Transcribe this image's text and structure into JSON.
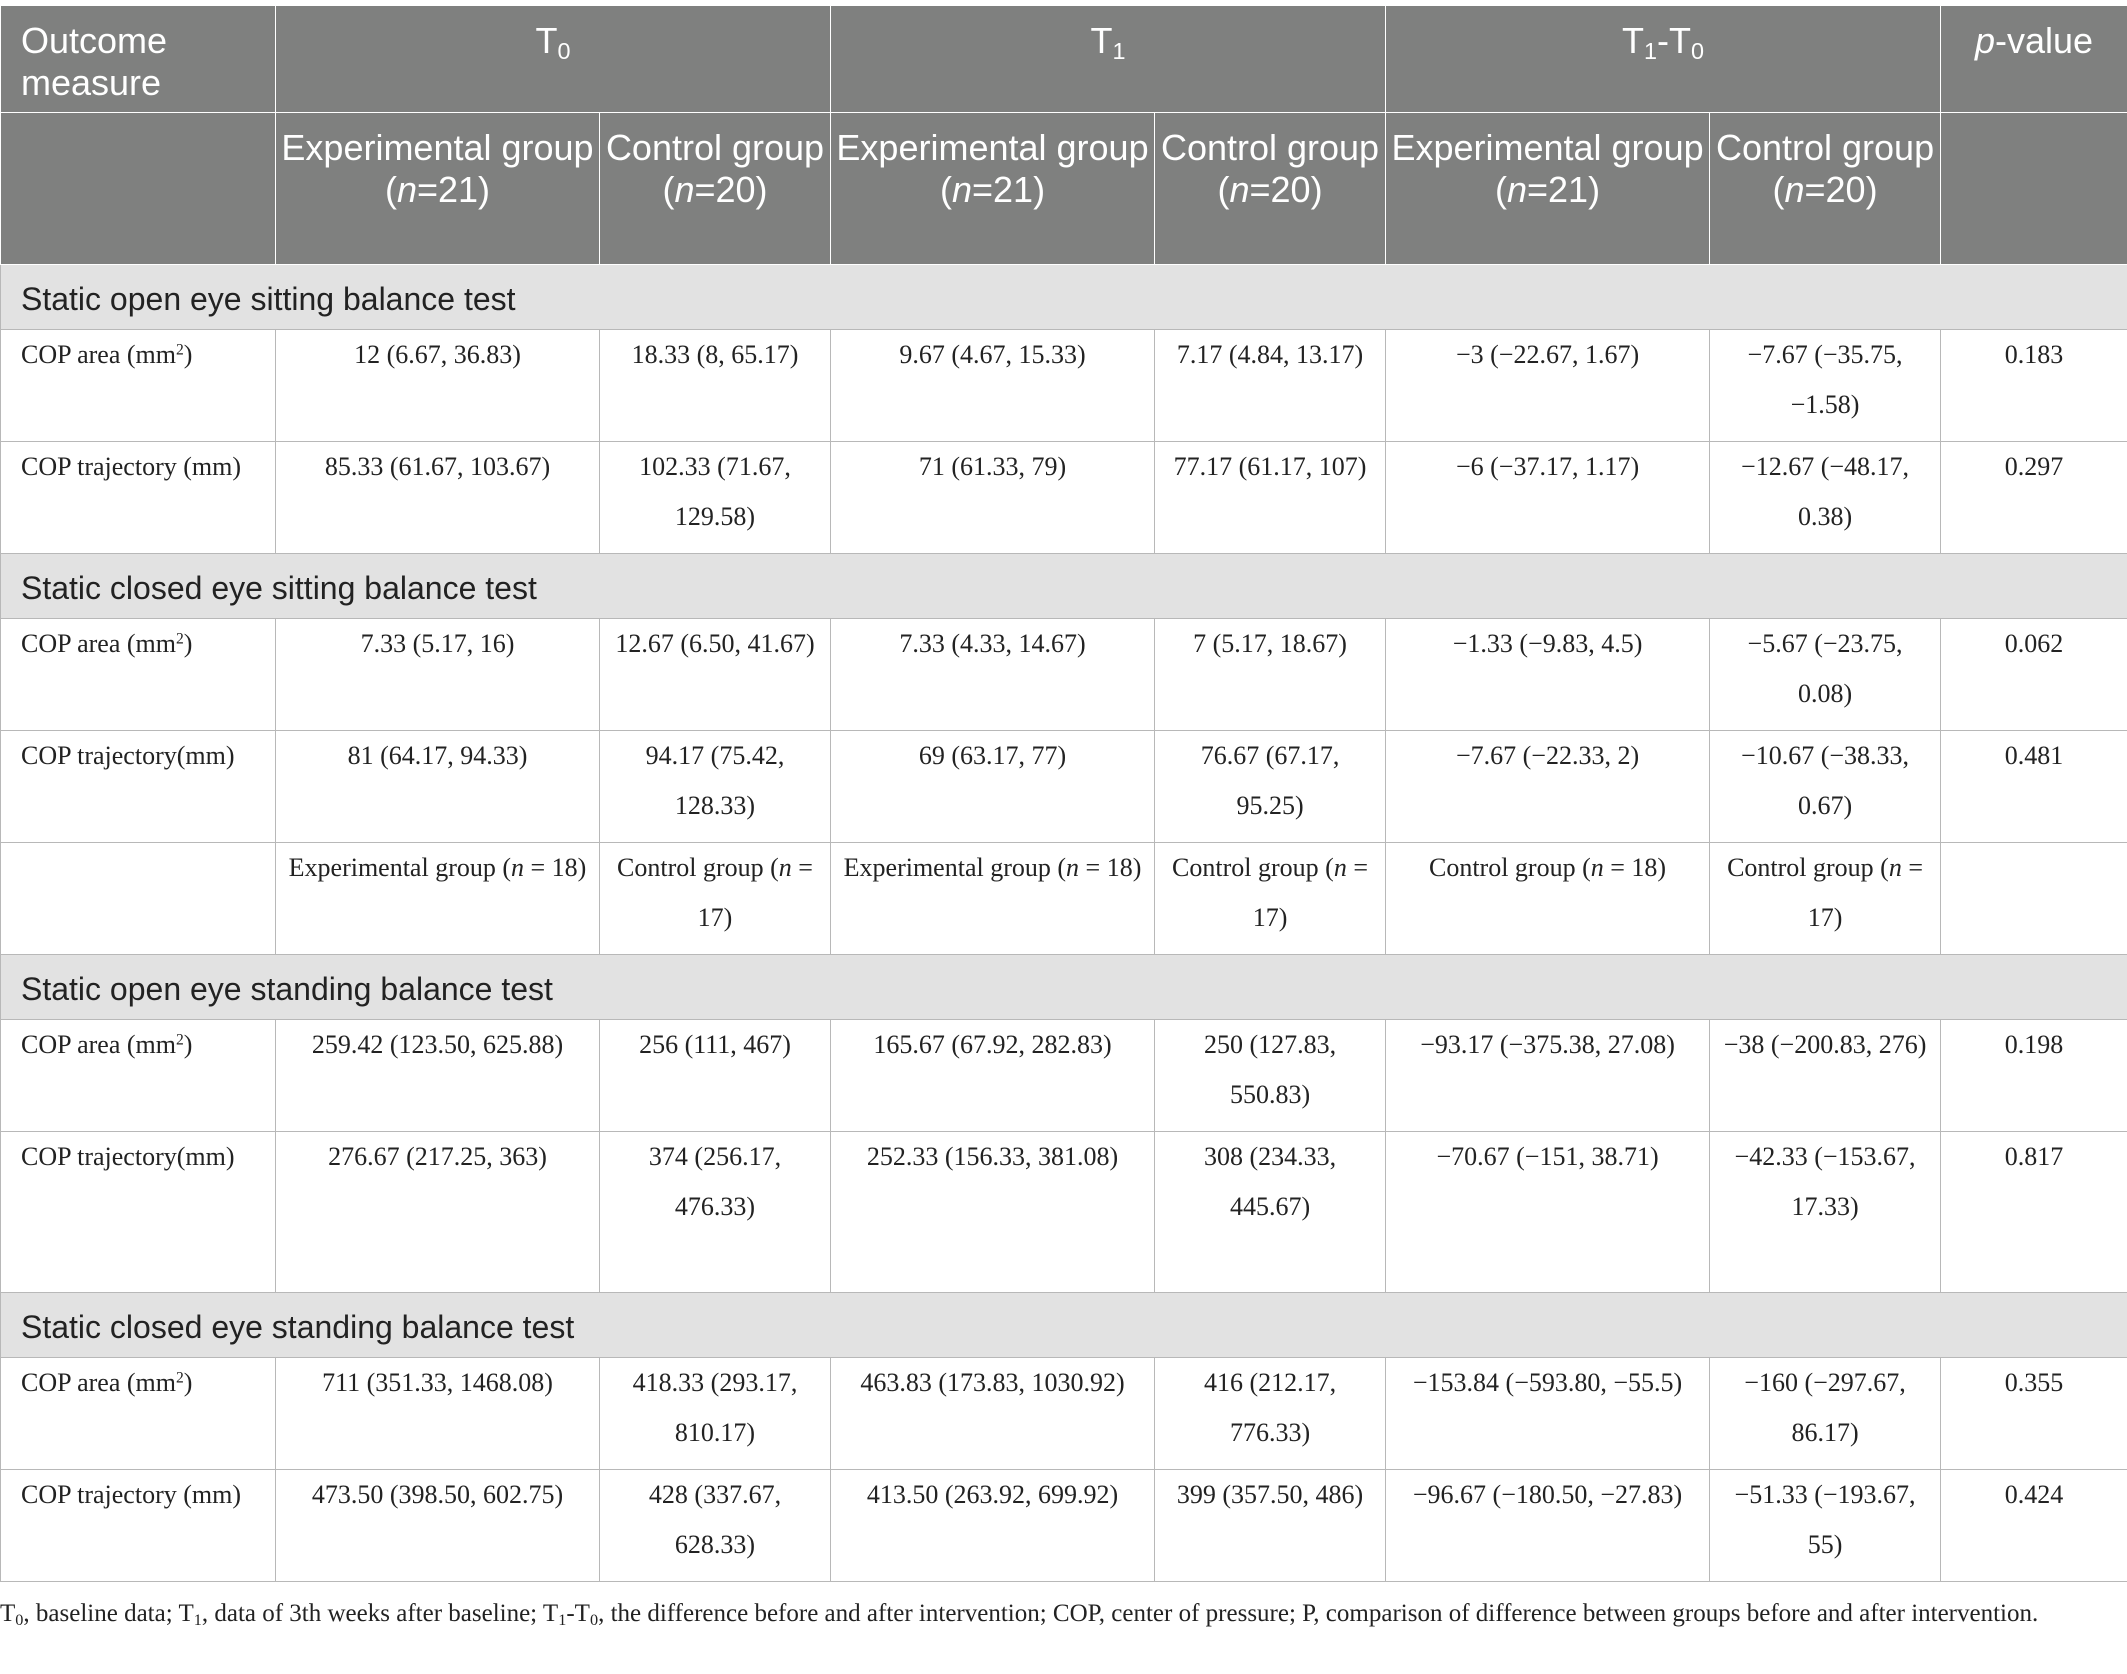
{
  "header": {
    "outcome_measure": "Outcome measure",
    "t0": "T",
    "t0_sub": "0",
    "t1": "T",
    "t1_sub": "1",
    "diff_a": "T",
    "diff_a_sub": "1",
    "diff_sep": "-T",
    "diff_b_sub": "0",
    "p_italic": "p",
    "p_rest": "-value",
    "groups": [
      {
        "a": "Experimental group (",
        "n": "n",
        "b": "=21)"
      },
      {
        "a": "Control group (",
        "n": "n",
        "b": "=20)"
      },
      {
        "a": "Experimental group (",
        "n": "n",
        "b": "=21)"
      },
      {
        "a": "Control group (",
        "n": "n",
        "b": "=20)"
      },
      {
        "a": "Experimental group (",
        "n": "n",
        "b": "=21)"
      },
      {
        "a": "Control group (",
        "n": "n",
        "b": "=20)"
      }
    ]
  },
  "sections": {
    "s1": "Static open eye sitting balance test",
    "s2": "Static closed eye sitting balance test",
    "s3": "Static open eye standing balance test",
    "s4": "Static closed eye standing balance test"
  },
  "labels": {
    "cop_area": "COP area (mm",
    "cop_area_sup": "2",
    "cop_area_end": ")",
    "cop_traj_space": "COP trajectory (mm)",
    "cop_traj_nospace": "COP trajectory(mm)"
  },
  "rows": [
    [
      "12 (6.67, 36.83)",
      "18.33 (8, 65.17)",
      "9.67 (4.67, 15.33)",
      "7.17 (4.84, 13.17)",
      "−3 (−22.67, 1.67)",
      "−7.67 (−35.75, −1.58)",
      "0.183"
    ],
    [
      "85.33 (61.67, 103.67)",
      "102.33 (71.67, 129.58)",
      "71 (61.33, 79)",
      "77.17 (61.17, 107)",
      "−6 (−37.17, 1.17)",
      "−12.67 (−48.17, 0.38)",
      "0.297"
    ],
    [
      "7.33 (5.17, 16)",
      "12.67 (6.50, 41.67)",
      "7.33 (4.33, 14.67)",
      "7 (5.17, 18.67)",
      "−1.33 (−9.83, 4.5)",
      "−5.67 (−23.75, 0.08)",
      "0.062"
    ],
    [
      "81 (64.17, 94.33)",
      "94.17 (75.42, 128.33)",
      "69 (63.17, 77)",
      "76.67 (67.17, 95.25)",
      "−7.67 (−22.33, 2)",
      "−10.67 (−38.33, 0.67)",
      "0.481"
    ],
    [
      "259.42 (123.50, 625.88)",
      "256 (111, 467)",
      "165.67 (67.92, 282.83)",
      "250 (127.83, 550.83)",
      "−93.17 (−375.38, 27.08)",
      "−38 (−200.83, 276)",
      "0.198"
    ],
    [
      "276.67 (217.25, 363)",
      "374 (256.17, 476.33)",
      "252.33 (156.33, 381.08)",
      "308 (234.33, 445.67)",
      "−70.67 (−151, 38.71)",
      "−42.33 (−153.67, 17.33)",
      "0.817"
    ],
    [
      "711 (351.33, 1468.08)",
      "418.33 (293.17, 810.17)",
      "463.83 (173.83, 1030.92)",
      "416 (212.17, 776.33)",
      "−153.84 (−593.80, −55.5)",
      "−160 (−297.67, 86.17)",
      "0.355"
    ],
    [
      "473.50 (398.50, 602.75)",
      "428 (337.67, 628.33)",
      "413.50 (263.92, 699.92)",
      "399 (357.50, 486)",
      "−96.67 (−180.50, −27.83)",
      "−51.33 (−193.67, 55)",
      "0.424"
    ]
  ],
  "subgroup_row": [
    {
      "a": "Experimental group (",
      "n": "n",
      "b": " = 18)"
    },
    {
      "a": "Control group (",
      "n": "n",
      "b": " = 17)"
    },
    {
      "a": "Experimental group (",
      "n": "n",
      "b": " = 18)"
    },
    {
      "a": "Control group (",
      "n": "n",
      "b": " = 17)"
    },
    {
      "a": "Control group (",
      "n": "n",
      "b": " = 18)"
    },
    {
      "a": "Control group (",
      "n": "n",
      "b": " = 17)"
    }
  ],
  "footnote": {
    "t": "T",
    "s0": "0",
    "p1": ", baseline data; T",
    "s1": "1",
    "p2": ", data of 3th weeks after baseline; T",
    "s2": "1",
    "p3": "-T",
    "s3": "0",
    "p4": ", the difference before and after intervention; COP, center of pressure; P, comparison of difference between groups before and after intervention."
  }
}
